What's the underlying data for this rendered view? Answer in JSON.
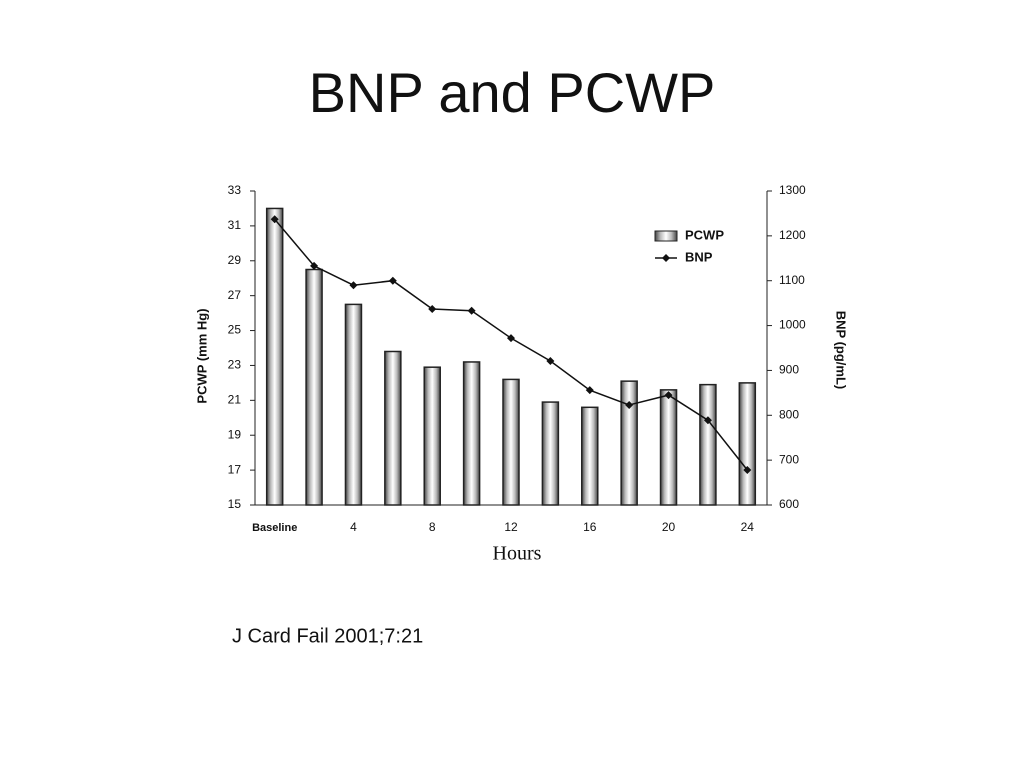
{
  "title": "BNP and PCWP",
  "citation": "J Card Fail 2001;7:21",
  "chart_data": {
    "type": "bar_line",
    "x_label": "Hours",
    "y_label": "PCWP (mm Hg)",
    "y2_label": "BNP (pg/mL)",
    "categories": [
      "Baseline",
      null,
      "4",
      null,
      "8",
      null,
      "12",
      null,
      "16",
      null,
      "20",
      null,
      "24"
    ],
    "series": [
      {
        "name": "PCWP",
        "type": "bar",
        "color": "#222222",
        "values": [
          32,
          28.5,
          26.5,
          23.8,
          22.9,
          23.2,
          22.2,
          20.9,
          20.6,
          22.1,
          21.6,
          21.9,
          22.0
        ]
      },
      {
        "name": "BNP",
        "type": "line",
        "axis": "y2",
        "color": "#111111",
        "values": [
          1237,
          1133,
          1090,
          1100,
          1037,
          1033,
          972,
          921,
          856,
          823,
          845,
          789,
          678
        ]
      }
    ],
    "ylim": [
      15,
      33
    ],
    "yticks": [
      15,
      17,
      19,
      21,
      23,
      25,
      27,
      29,
      31,
      33
    ],
    "y2lim": [
      600,
      1300
    ],
    "y2ticks": [
      600,
      700,
      800,
      900,
      1000,
      1100,
      1200,
      1300
    ],
    "legend": "top-right"
  }
}
